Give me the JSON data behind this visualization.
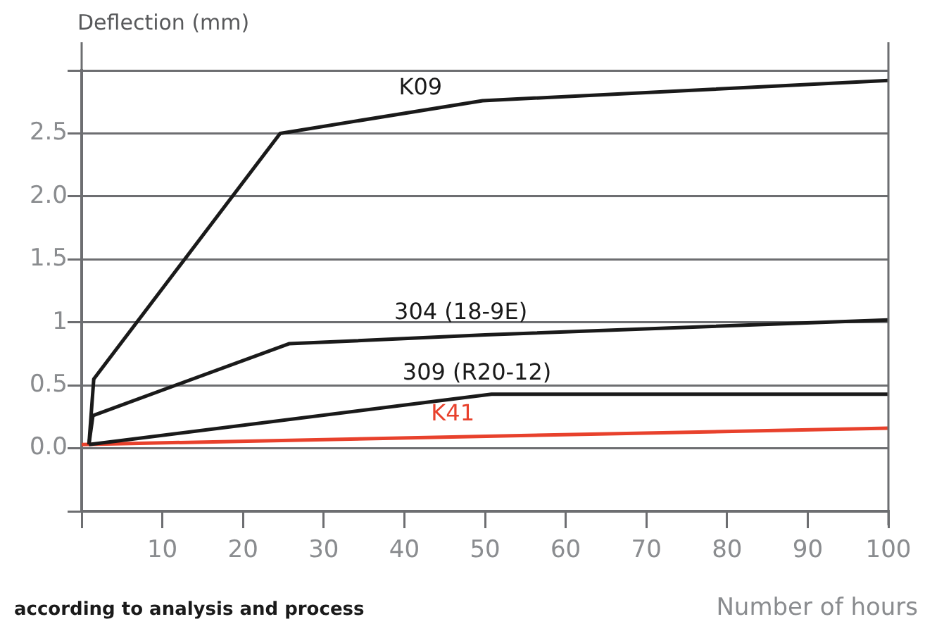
{
  "chart_data": {
    "type": "line",
    "xlabel": "Number of hours",
    "ylabel": "Deflection (mm)",
    "annotations": [
      "according to analysis and process"
    ],
    "xlim": [
      0,
      100
    ],
    "xticks": [
      {
        "value": 0,
        "label": null
      },
      10,
      20,
      30,
      40,
      50,
      60,
      70,
      80,
      90,
      100
    ],
    "ylim": [
      -0.5,
      3.0
    ],
    "yticks": [
      {
        "value": -0.5,
        "label": null
      },
      {
        "value": 0,
        "label": "0.0"
      },
      0.5,
      1,
      1.5,
      {
        "value": 2,
        "label": "2.0"
      },
      2.5,
      {
        "value": 3,
        "label": null
      }
    ],
    "grid": "y",
    "legend": false,
    "marker": "none",
    "line_style": "solid",
    "series": [
      {
        "name": "K09",
        "color": "#1a1a1a",
        "x": [
          0.9,
          1.5,
          24.6,
          49.7,
          100
        ],
        "values": [
          0.03,
          0.55,
          2.5,
          2.76,
          2.92
        ]
      },
      {
        "name": "304 (18-9E)",
        "color": "#1a1a1a",
        "x": [
          0.9,
          1.4,
          25.7,
          50,
          100
        ],
        "values": [
          0.03,
          0.26,
          0.83,
          0.9,
          1.02
        ]
      },
      {
        "name": "309 (R20-12)",
        "color": "#1a1a1a",
        "x": [
          0.9,
          50.8,
          100
        ],
        "values": [
          0.03,
          0.43,
          0.43
        ]
      },
      {
        "name": "K41",
        "color": "#e8412c",
        "x": [
          0,
          100
        ],
        "values": [
          0.03,
          0.16
        ]
      }
    ]
  }
}
